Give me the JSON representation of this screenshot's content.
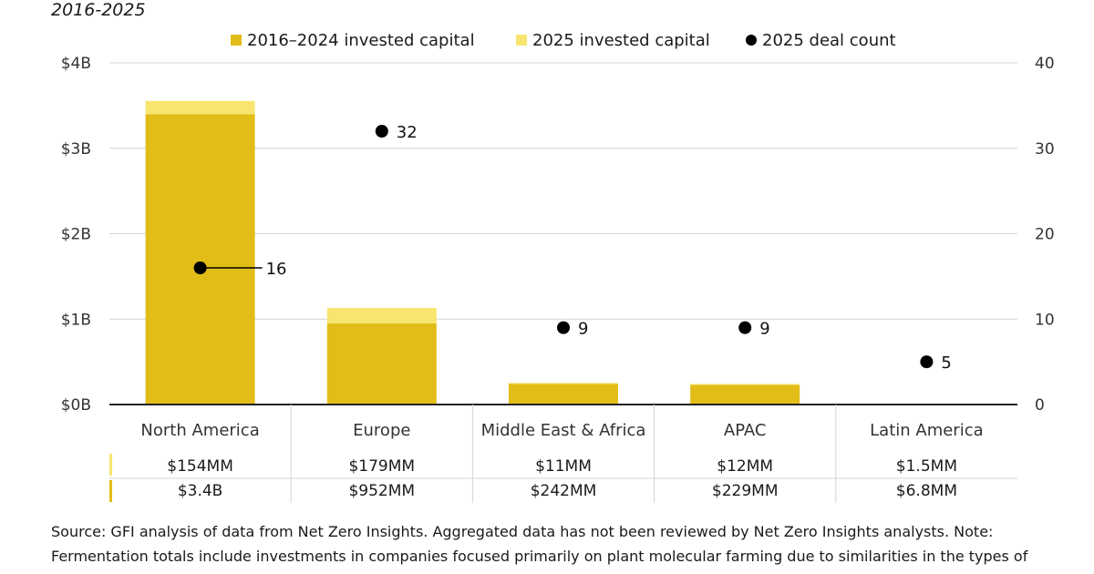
{
  "subtitle": "2016-2025",
  "source_note": "Source: GFI analysis of data from Net Zero Insights. Aggregated data has not been reviewed by Net Zero Insights analysts. Note: Fermentation totals include investments in companies focused primarily on plant molecular farming due to similarities in the types of",
  "colors": {
    "prior": "#e2bd17",
    "current": "#f8e56f",
    "dot": "#000000",
    "axis": "#222222",
    "grid": "#d4d4d4"
  },
  "chart_data": {
    "type": "bar",
    "stacked": true,
    "categories": [
      "North America",
      "Europe",
      "Middle East & Africa",
      "APAC",
      "Latin America"
    ],
    "series": [
      {
        "name": "2016–2024 invested capital",
        "unit": "billions USD",
        "values": [
          3.4,
          0.952,
          0.242,
          0.229,
          0.0068
        ]
      },
      {
        "name": "2025 invested capital",
        "unit": "billions USD",
        "values": [
          0.154,
          0.179,
          0.011,
          0.012,
          0.0015
        ]
      }
    ],
    "deal_series": {
      "name": "2025 deal count",
      "values": [
        16,
        32,
        9,
        9,
        5
      ]
    },
    "y_left": {
      "ticks": [
        0,
        1,
        2,
        3,
        4
      ],
      "tick_labels": [
        "$0B",
        "$1B",
        "$2B",
        "$3B",
        "$4B"
      ],
      "ylim": [
        0,
        4
      ]
    },
    "y_right": {
      "ticks": [
        0,
        10,
        20,
        30,
        40
      ],
      "tick_labels": [
        "0",
        "10",
        "20",
        "30",
        "40"
      ],
      "ylim": [
        0,
        40
      ]
    },
    "legend": [
      "2016–2024 invested capital",
      "2025 invested capital",
      "2025 deal count"
    ],
    "legend_position": "top",
    "table": {
      "row_2025": [
        "$154MM",
        "$179MM",
        "$11MM",
        "$12MM",
        "$1.5MM"
      ],
      "row_2016_2024": [
        "$3.4B",
        "$952MM",
        "$242MM",
        "$229MM",
        "$6.8MM"
      ]
    }
  }
}
